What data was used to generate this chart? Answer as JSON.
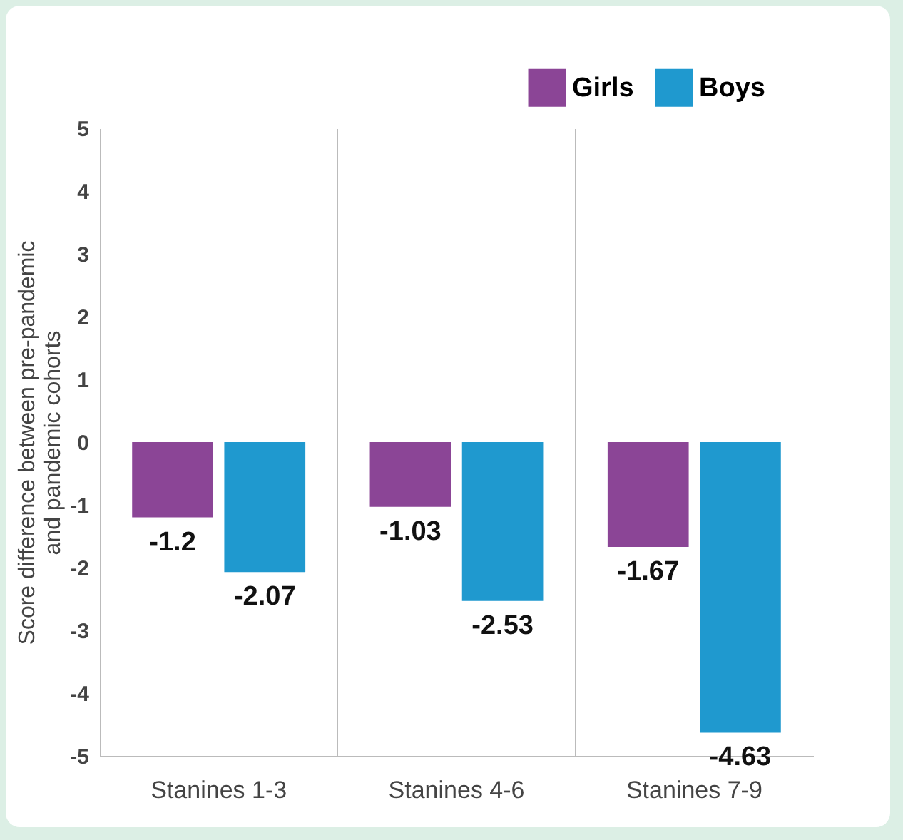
{
  "chart_data": {
    "type": "bar",
    "ylabel": "Score difference between pre-pandemic and pandemic cohorts",
    "categories": [
      "Stanines 1-3",
      "Stanines 4-6",
      "Stanines 7-9"
    ],
    "series": [
      {
        "name": "Girls",
        "color": "#8b4596",
        "values": [
          -1.2,
          -1.03,
          -1.67
        ]
      },
      {
        "name": "Boys",
        "color": "#1f99cf",
        "values": [
          -2.07,
          -2.53,
          -4.63
        ]
      }
    ],
    "ylim": [
      -5,
      5
    ],
    "yticks": [
      -5,
      -4,
      -3,
      -2,
      -1,
      0,
      1,
      2,
      3,
      4,
      5
    ],
    "grid": "x",
    "legend": "top right",
    "data_labels": true
  }
}
